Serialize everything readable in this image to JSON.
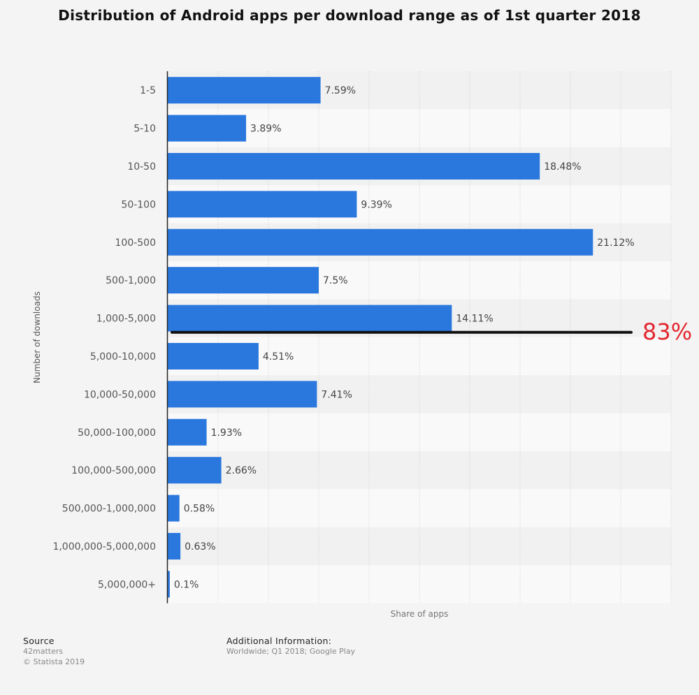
{
  "title": "Distribution of Android apps per download range as of 1st quarter 2018",
  "chart_data": {
    "type": "bar",
    "orientation": "horizontal",
    "ylabel": "Number of downloads",
    "xlabel": "Share of apps",
    "xlim": [
      0,
      25
    ],
    "grid": true,
    "categories": [
      "1-5",
      "5-10",
      "10-50",
      "50-100",
      "100-500",
      "500-1,000",
      "1,000-5,000",
      "5,000-10,000",
      "10,000-50,000",
      "50,000-100,000",
      "100,000-500,000",
      "500,000-1,000,000",
      "1,000,000-5,000,000",
      "5,000,000+"
    ],
    "values": [
      7.59,
      3.89,
      18.48,
      9.39,
      21.12,
      7.5,
      14.11,
      4.51,
      7.41,
      1.93,
      2.66,
      0.58,
      0.63,
      0.1
    ],
    "value_labels": [
      "7.59%",
      "3.89%",
      "18.48%",
      "9.39%",
      "21.12%",
      "7.5%",
      "14.11%",
      "4.51%",
      "7.41%",
      "1.93%",
      "2.66%",
      "0.58%",
      "0.63%",
      "0.1%"
    ],
    "bar_color": "#2a78de",
    "annotation": {
      "text": "83%",
      "color": "#e3262f",
      "after_category": "1,000-5,000"
    }
  },
  "source": {
    "heading": "Source",
    "lines": [
      "42matters",
      "© Statista 2019"
    ]
  },
  "additional_info": {
    "heading": "Additional Information:",
    "text": "Worldwide; Q1 2018; Google Play"
  }
}
